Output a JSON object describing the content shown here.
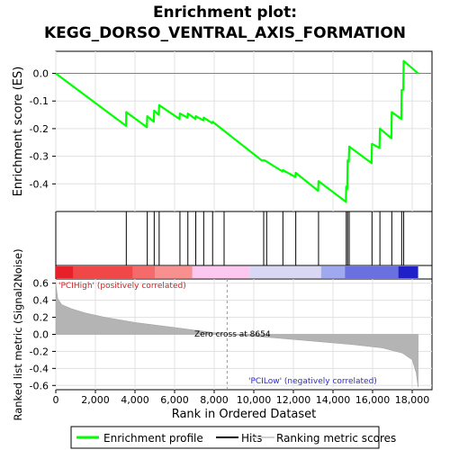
{
  "chart_data": [
    {
      "type": "line",
      "title_line1": "Enrichment plot:",
      "title_line2": "KEGG_DORSO_VENTRAL_AXIS_FORMATION",
      "ylabel": "Enrichment score (ES)",
      "ylim": [
        -0.5,
        0.08
      ],
      "xlim": [
        0,
        19000
      ],
      "y_ticks": [
        0.0,
        -0.1,
        -0.2,
        -0.3,
        -0.4
      ],
      "y_tick_labels": [
        "0.0",
        "-0.1",
        "-0.2",
        "-0.3",
        "-0.4"
      ],
      "grid": true,
      "series": [
        {
          "name": "Enrichment profile",
          "color": "#00ff00",
          "points": [
            [
              0,
              0.0
            ],
            [
              3550,
              -0.19
            ],
            [
              3560,
              -0.14
            ],
            [
              4600,
              -0.195
            ],
            [
              4620,
              -0.155
            ],
            [
              4950,
              -0.175
            ],
            [
              4970,
              -0.135
            ],
            [
              5200,
              -0.15
            ],
            [
              5220,
              -0.115
            ],
            [
              6250,
              -0.165
            ],
            [
              6270,
              -0.145
            ],
            [
              6650,
              -0.16
            ],
            [
              6670,
              -0.145
            ],
            [
              7050,
              -0.165
            ],
            [
              7070,
              -0.155
            ],
            [
              7450,
              -0.17
            ],
            [
              7470,
              -0.16
            ],
            [
              7900,
              -0.18
            ],
            [
              7920,
              -0.175
            ],
            [
              10400,
              -0.315
            ],
            [
              10550,
              -0.315
            ],
            [
              11450,
              -0.355
            ],
            [
              11470,
              -0.35
            ],
            [
              12100,
              -0.375
            ],
            [
              12120,
              -0.36
            ],
            [
              13250,
              -0.425
            ],
            [
              13270,
              -0.39
            ],
            [
              14650,
              -0.465
            ],
            [
              14670,
              -0.41
            ],
            [
              14720,
              -0.42
            ],
            [
              14740,
              -0.315
            ],
            [
              14800,
              -0.32
            ],
            [
              14820,
              -0.265
            ],
            [
              15950,
              -0.325
            ],
            [
              15970,
              -0.255
            ],
            [
              16350,
              -0.27
            ],
            [
              16370,
              -0.2
            ],
            [
              16950,
              -0.235
            ],
            [
              16970,
              -0.14
            ],
            [
              17450,
              -0.165
            ],
            [
              17470,
              -0.06
            ],
            [
              17550,
              -0.06
            ],
            [
              17570,
              0.045
            ],
            [
              18300,
              0.0
            ]
          ]
        }
      ]
    },
    {
      "type": "hits",
      "name": "Hits",
      "hit_positions": [
        3560,
        4620,
        4970,
        5220,
        6270,
        6670,
        7070,
        7470,
        7920,
        8500,
        10500,
        10650,
        11470,
        12120,
        13270,
        14670,
        14740,
        14820,
        15970,
        16370,
        16970,
        17470,
        17570
      ]
    },
    {
      "type": "heatmap",
      "name": "Ranking metric scores",
      "xlim": [
        0,
        18300
      ],
      "segments": [
        {
          "from": 0,
          "to": 900,
          "color": "#e8202a"
        },
        {
          "from": 900,
          "to": 3900,
          "color": "#f04848"
        },
        {
          "from": 3900,
          "to": 5000,
          "color": "#f56a6a"
        },
        {
          "from": 5000,
          "to": 6900,
          "color": "#f89090"
        },
        {
          "from": 6900,
          "to": 9800,
          "color": "#fcc8f0"
        },
        {
          "from": 9800,
          "to": 13400,
          "color": "#d8d8f4"
        },
        {
          "from": 13400,
          "to": 14600,
          "color": "#a0a8f0"
        },
        {
          "from": 14600,
          "to": 17300,
          "color": "#6a70e0"
        },
        {
          "from": 17300,
          "to": 18300,
          "color": "#2020c8"
        }
      ]
    },
    {
      "type": "area",
      "ylabel": "Ranked list metric (Signal2Noise)",
      "xlabel": "Rank in Ordered Dataset",
      "ylim": [
        -0.65,
        0.65
      ],
      "xlim": [
        0,
        19000
      ],
      "y_ticks": [
        0.6,
        0.4,
        0.2,
        0.0,
        -0.2,
        -0.4,
        -0.6
      ],
      "y_tick_labels": [
        "0.6",
        "0.4",
        "0.2",
        "0.0",
        "-0.2",
        "-0.4",
        "-0.6"
      ],
      "x_ticks": [
        0,
        2000,
        4000,
        6000,
        8000,
        10000,
        12000,
        14000,
        16000,
        18000
      ],
      "x_tick_labels": [
        "0",
        "2,000",
        "4,000",
        "6,000",
        "8,000",
        "10,000",
        "12,000",
        "14,000",
        "16,000",
        "18,000"
      ],
      "grid": true,
      "points": [
        [
          0,
          0.6
        ],
        [
          100,
          0.42
        ],
        [
          300,
          0.35
        ],
        [
          800,
          0.3
        ],
        [
          1500,
          0.25
        ],
        [
          2500,
          0.2
        ],
        [
          4000,
          0.14
        ],
        [
          6000,
          0.08
        ],
        [
          8654,
          0.0
        ],
        [
          11000,
          -0.04
        ],
        [
          13000,
          -0.08
        ],
        [
          15000,
          -0.12
        ],
        [
          16500,
          -0.16
        ],
        [
          17500,
          -0.22
        ],
        [
          18000,
          -0.3
        ],
        [
          18200,
          -0.45
        ],
        [
          18300,
          -0.62
        ]
      ],
      "zero_cross": 8654,
      "zero_cross_label": "Zero cross at 8654",
      "pos_label": "'PCIHigh' (positively correlated)",
      "neg_label": "'PCILow' (negatively correlated)"
    }
  ],
  "legend": {
    "items": [
      {
        "label": "Enrichment profile",
        "color": "#00ff00"
      },
      {
        "label": "Hits",
        "color": "#000000"
      },
      {
        "label": "Ranking metric scores",
        "color": "#d0d0d0"
      }
    ]
  }
}
